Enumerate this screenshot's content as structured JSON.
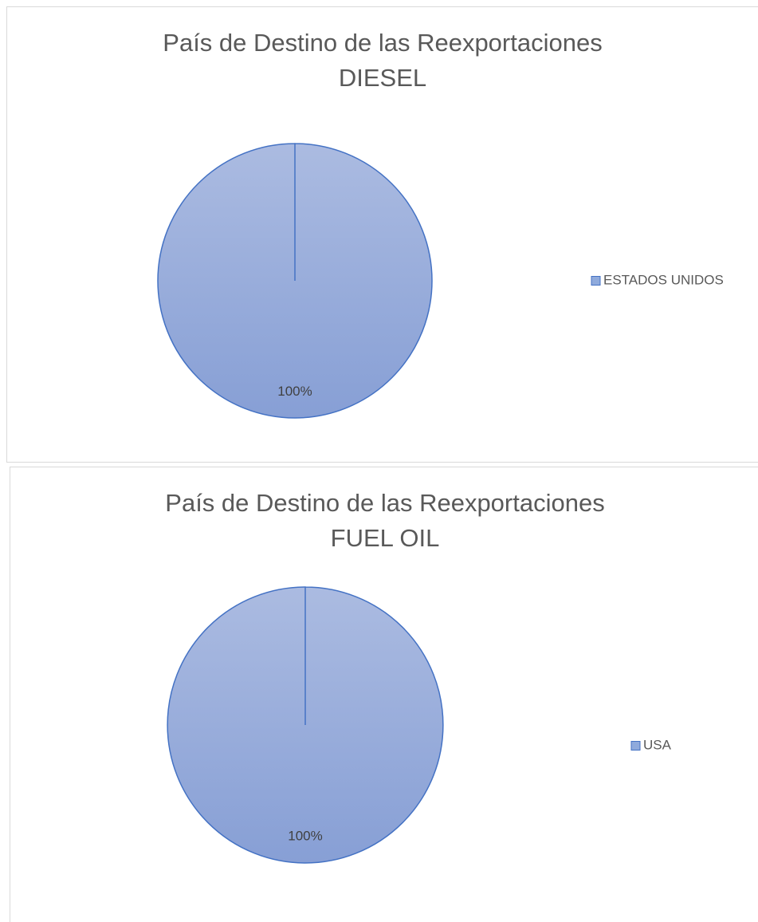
{
  "chart_data": [
    {
      "type": "pie",
      "title": "País de Destino de las Reexportaciones",
      "subtitle": "DIESEL",
      "categories": [
        "ESTADOS UNIDOS"
      ],
      "values": [
        100
      ],
      "value_labels": [
        "100%"
      ],
      "colors": [
        "#8faadc"
      ],
      "legend": "right"
    },
    {
      "type": "pie",
      "title": "País de Destino de las Reexportaciones",
      "subtitle": "FUEL OIL",
      "categories": [
        "USA"
      ],
      "values": [
        100
      ],
      "value_labels": [
        "100%"
      ],
      "colors": [
        "#8faadc"
      ],
      "legend": "right"
    }
  ]
}
